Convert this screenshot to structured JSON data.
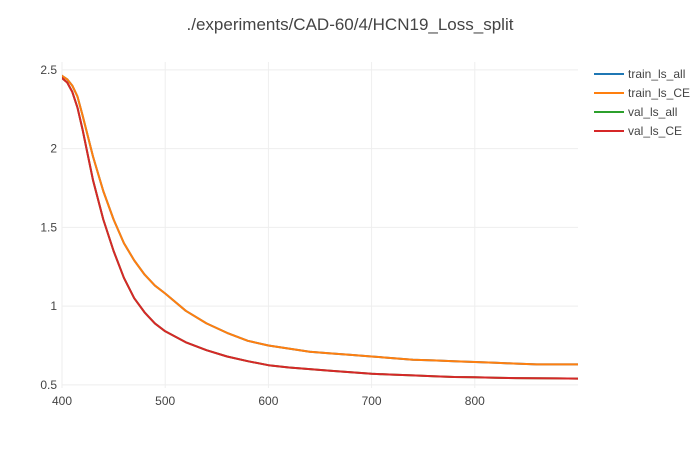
{
  "chart_data": {
    "type": "line",
    "title": "./experiments/CAD-60/4/HCN19_Loss_split",
    "xlabel": "",
    "ylabel": "",
    "xlim": [
      400,
      900
    ],
    "ylim": [
      0.48,
      2.55
    ],
    "grid": true,
    "legend_position": "top-right",
    "x_ticks": [
      400,
      500,
      600,
      700,
      800
    ],
    "x_tick_labels": [
      "400",
      "500",
      "600",
      "700",
      "800"
    ],
    "y_ticks": [
      0.5,
      1,
      1.5,
      2,
      2.5
    ],
    "y_tick_labels": [
      "0.5",
      "1",
      "1.5",
      "2",
      "2.5"
    ],
    "series": [
      {
        "name": "train_ls_all",
        "color": "#1f77b4",
        "x": [
          396,
          405,
          410,
          415,
          420,
          425,
          430,
          440,
          450,
          460,
          470,
          480,
          490,
          500,
          520,
          540,
          560,
          580,
          600,
          620,
          640,
          660,
          680,
          700,
          720,
          740,
          760,
          780,
          800,
          820,
          840,
          860,
          880,
          900
        ],
        "y": [
          2.48,
          2.44,
          2.4,
          2.33,
          2.21,
          2.08,
          1.95,
          1.73,
          1.55,
          1.4,
          1.29,
          1.2,
          1.13,
          1.08,
          0.97,
          0.89,
          0.83,
          0.78,
          0.75,
          0.73,
          0.71,
          0.7,
          0.69,
          0.68,
          0.67,
          0.66,
          0.655,
          0.65,
          0.645,
          0.64,
          0.635,
          0.63,
          0.63,
          0.63
        ]
      },
      {
        "name": "train_ls_CE",
        "color": "#ff7f0e",
        "x": [
          396,
          405,
          410,
          415,
          420,
          425,
          430,
          440,
          450,
          460,
          470,
          480,
          490,
          500,
          520,
          540,
          560,
          580,
          600,
          620,
          640,
          660,
          680,
          700,
          720,
          740,
          760,
          780,
          800,
          820,
          840,
          860,
          880,
          900
        ],
        "y": [
          2.48,
          2.44,
          2.4,
          2.33,
          2.21,
          2.08,
          1.95,
          1.73,
          1.55,
          1.4,
          1.29,
          1.2,
          1.13,
          1.08,
          0.97,
          0.89,
          0.83,
          0.78,
          0.75,
          0.73,
          0.71,
          0.7,
          0.69,
          0.68,
          0.67,
          0.66,
          0.655,
          0.65,
          0.645,
          0.64,
          0.635,
          0.63,
          0.63,
          0.63
        ]
      },
      {
        "name": "val_ls_all",
        "color": "#2ca02c",
        "x": [
          396,
          405,
          410,
          415,
          420,
          425,
          430,
          440,
          450,
          460,
          470,
          480,
          490,
          500,
          520,
          540,
          560,
          580,
          600,
          620,
          640,
          660,
          680,
          700,
          720,
          740,
          760,
          780,
          800,
          820,
          840,
          860,
          880,
          900
        ],
        "y": [
          2.47,
          2.42,
          2.36,
          2.26,
          2.12,
          1.96,
          1.8,
          1.55,
          1.35,
          1.18,
          1.05,
          0.96,
          0.89,
          0.84,
          0.77,
          0.72,
          0.68,
          0.65,
          0.625,
          0.61,
          0.6,
          0.59,
          0.58,
          0.57,
          0.565,
          0.56,
          0.555,
          0.55,
          0.548,
          0.545,
          0.543,
          0.542,
          0.541,
          0.54
        ]
      },
      {
        "name": "val_ls_CE",
        "color": "#d62728",
        "x": [
          396,
          405,
          410,
          415,
          420,
          425,
          430,
          440,
          450,
          460,
          470,
          480,
          490,
          500,
          520,
          540,
          560,
          580,
          600,
          620,
          640,
          660,
          680,
          700,
          720,
          740,
          760,
          780,
          800,
          820,
          840,
          860,
          880,
          900
        ],
        "y": [
          2.47,
          2.42,
          2.36,
          2.26,
          2.12,
          1.96,
          1.8,
          1.55,
          1.35,
          1.18,
          1.05,
          0.96,
          0.89,
          0.84,
          0.77,
          0.72,
          0.68,
          0.65,
          0.625,
          0.61,
          0.6,
          0.59,
          0.58,
          0.57,
          0.565,
          0.56,
          0.555,
          0.55,
          0.548,
          0.545,
          0.543,
          0.542,
          0.541,
          0.54
        ]
      }
    ]
  }
}
